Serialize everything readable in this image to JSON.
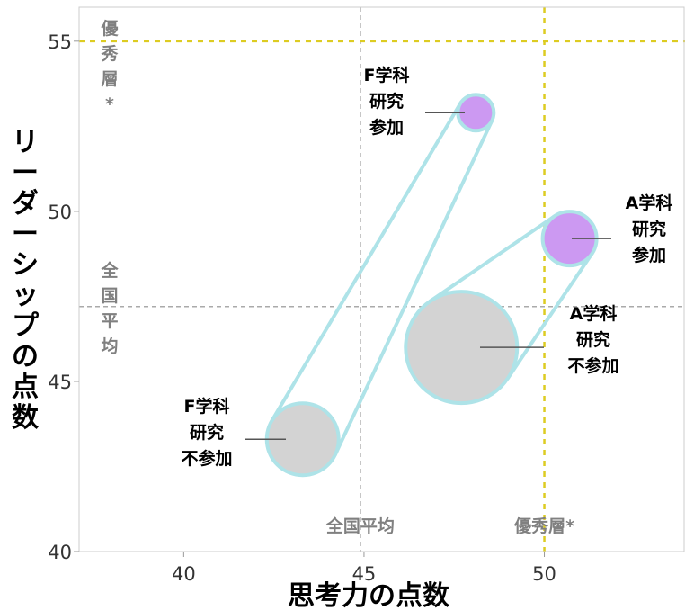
{
  "chart_data": {
    "type": "scatter",
    "xlabel": "思考力の点数",
    "ylabel": "リーダーシップの点数",
    "xlim": [
      37.1,
      53.9
    ],
    "ylim": [
      40,
      56
    ],
    "x_ticks": [
      "40",
      "45",
      "50"
    ],
    "y_ticks": [
      "40",
      "45",
      "50",
      "55"
    ],
    "grid": false,
    "reference_lines": [
      {
        "axis": "x",
        "value": 44.9,
        "label": "全国平均",
        "color": "#aaaaaa",
        "style": "dashed"
      },
      {
        "axis": "y",
        "value": 47.2,
        "label": "全国平均",
        "color": "#aaaaaa",
        "style": "dashed"
      },
      {
        "axis": "x",
        "value": 50.0,
        "label": "優秀層*",
        "color": "#ddcc22",
        "style": "dashed"
      },
      {
        "axis": "y",
        "value": 55.0,
        "label": "優秀層*",
        "color": "#ddcc22",
        "style": "dashed"
      }
    ],
    "points": [
      {
        "label_lines": [
          "F学科",
          "研究",
          "不参加"
        ],
        "x": 43.3,
        "y": 43.3,
        "size": 40,
        "color": "#d3d3d3",
        "group": "F"
      },
      {
        "label_lines": [
          "F学科",
          "研究",
          "参加"
        ],
        "x": 48.1,
        "y": 52.9,
        "size": 20,
        "color": "#cc99f2",
        "group": "F"
      },
      {
        "label_lines": [
          "A学科",
          "研究",
          "不参加"
        ],
        "x": 47.7,
        "y": 46.0,
        "size": 62,
        "color": "#d3d3d3",
        "group": "A"
      },
      {
        "label_lines": [
          "A学科",
          "研究",
          "参加"
        ],
        "x": 50.7,
        "y": 49.2,
        "size": 30,
        "color": "#cc99f2",
        "group": "A"
      }
    ],
    "connectors": [
      {
        "from": 0,
        "to": 1,
        "color": "#aee3e8"
      },
      {
        "from": 2,
        "to": 3,
        "color": "#aee3e8"
      }
    ]
  }
}
